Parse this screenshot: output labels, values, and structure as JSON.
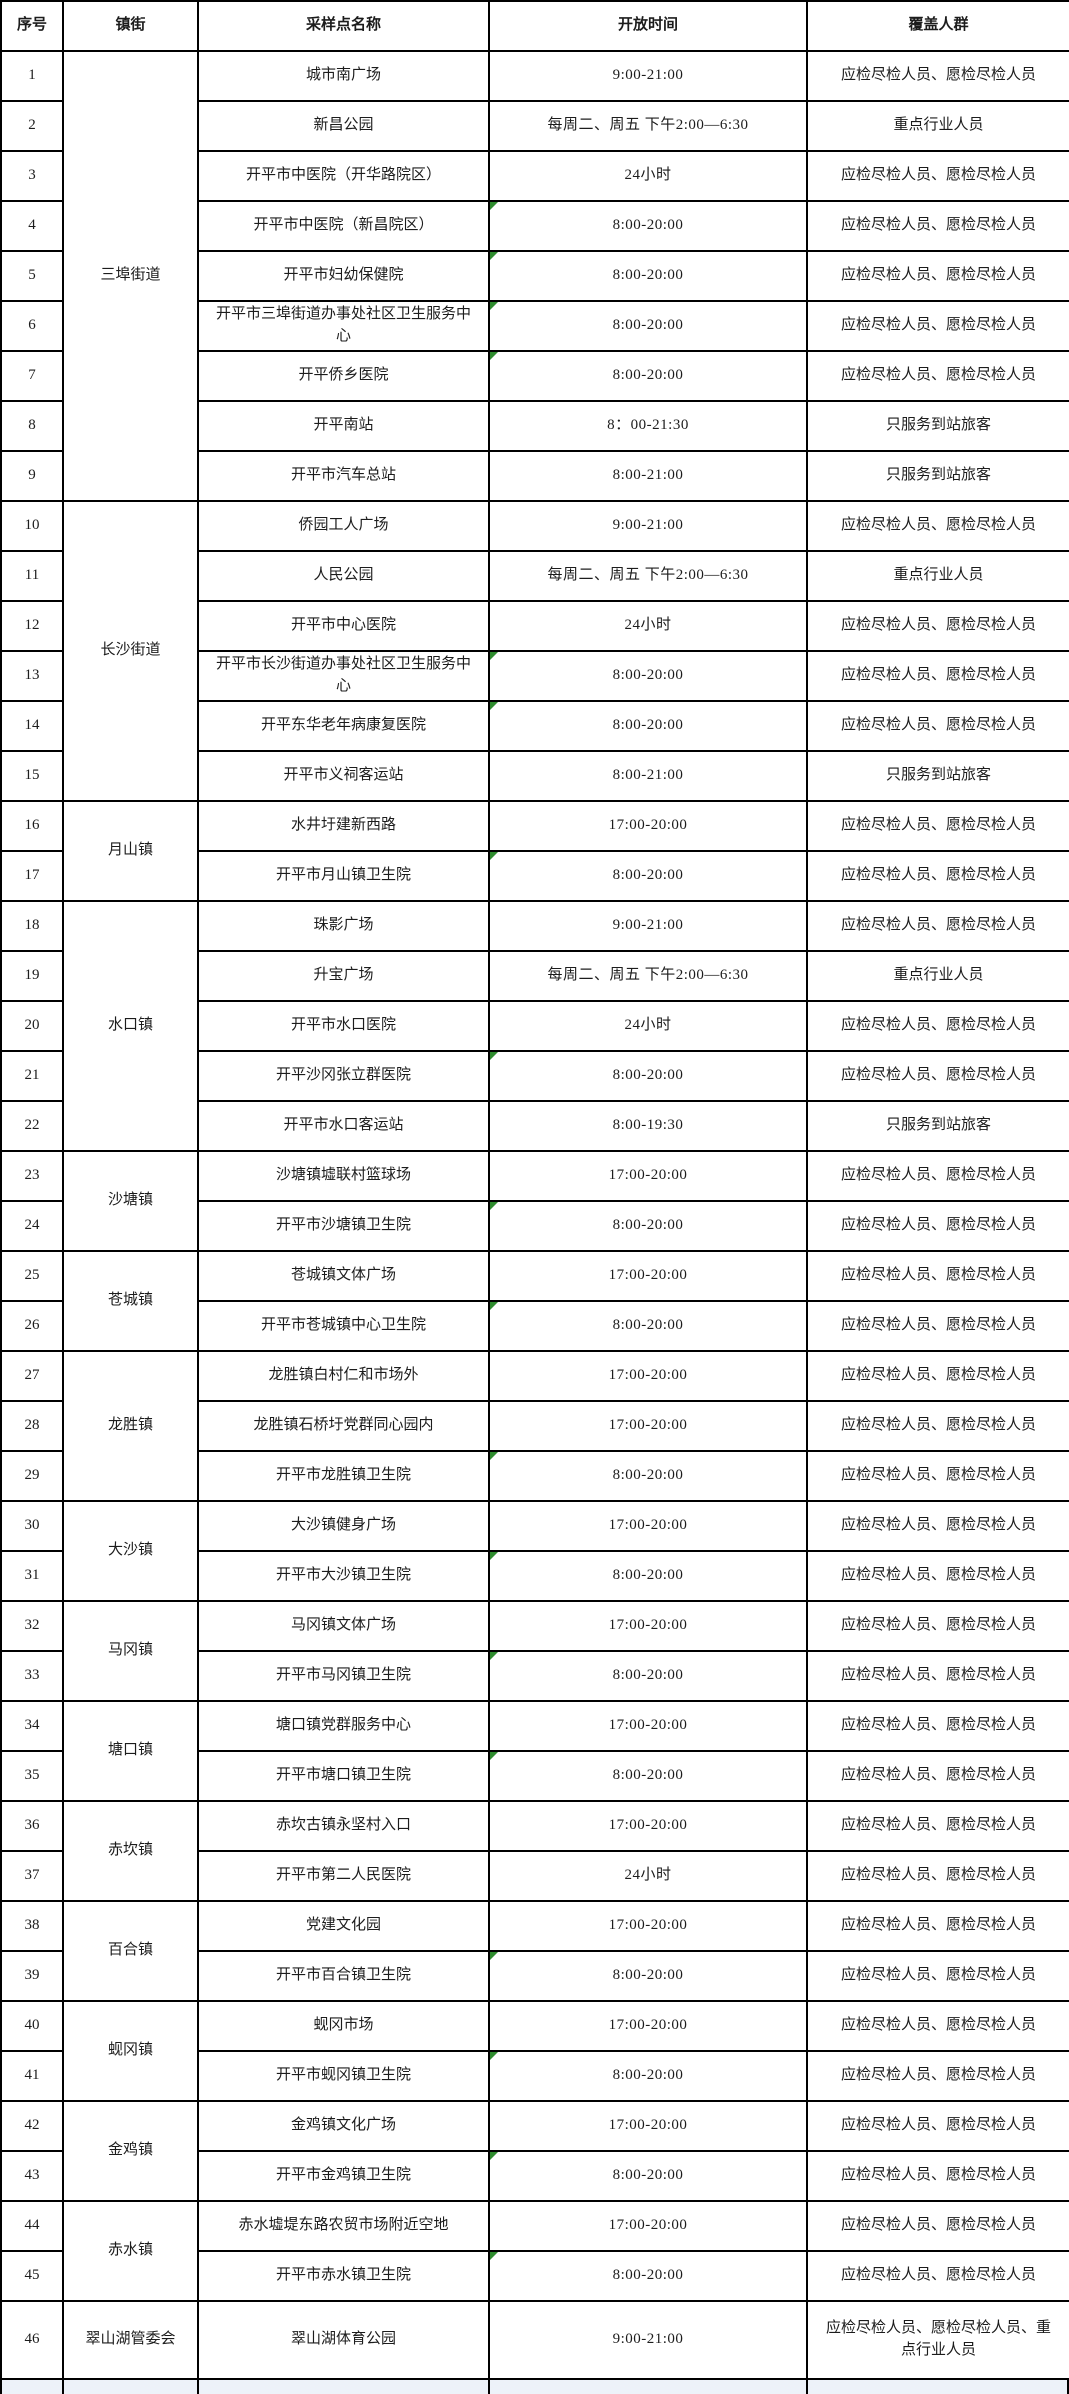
{
  "colors": {
    "red": "#e53325",
    "green_marker": "#2e8b2e",
    "bottom_strip_bg": "#edf2f9"
  },
  "table": {
    "headers": [
      "序号",
      "镇街",
      "采样点名称",
      "开放时间",
      "覆盖人群"
    ],
    "groups": [
      {
        "town": "三埠街道",
        "rows": [
          {
            "no": "1",
            "site": "城市南广场",
            "time": "9:00-21:00",
            "people": "应检尽检人员、愿检尽检人员",
            "red": true,
            "marker": false
          },
          {
            "no": "2",
            "site": "新昌公园",
            "time": "每周二、周五 下午2:00—6:30",
            "people": "重点行业人员",
            "red": true,
            "marker": false
          },
          {
            "no": "3",
            "site": "开平市中医院（开华路院区）",
            "time": "24小时",
            "people": "应检尽检人员、愿检尽检人员",
            "red": false,
            "marker": false
          },
          {
            "no": "4",
            "site": "开平市中医院（新昌院区）",
            "time": "8:00-20:00",
            "people": "应检尽检人员、愿检尽检人员",
            "red": false,
            "marker": true
          },
          {
            "no": "5",
            "site": "开平市妇幼保健院",
            "time": "8:00-20:00",
            "people": "应检尽检人员、愿检尽检人员",
            "red": false,
            "marker": true
          },
          {
            "no": "6",
            "site": "开平市三埠街道办事处社区卫生服务中心",
            "time": "8:00-20:00",
            "people": "应检尽检人员、愿检尽检人员",
            "red": false,
            "marker": true
          },
          {
            "no": "7",
            "site": "开平侨乡医院",
            "time": "8:00-20:00",
            "people": "应检尽检人员、愿检尽检人员",
            "red": false,
            "marker": true
          },
          {
            "no": "8",
            "site": "开平南站",
            "time": "8：00-21:30",
            "people": "只服务到站旅客",
            "red": false,
            "marker": false
          },
          {
            "no": "9",
            "site": "开平市汽车总站",
            "time": "8:00-21:00",
            "people": "只服务到站旅客",
            "red": false,
            "marker": false
          }
        ]
      },
      {
        "town": "长沙街道",
        "rows": [
          {
            "no": "10",
            "site": "侨园工人广场",
            "time": "9:00-21:00",
            "people": "应检尽检人员、愿检尽检人员",
            "red": true,
            "marker": false
          },
          {
            "no": "11",
            "site": "人民公园",
            "time": "每周二、周五 下午2:00—6:30",
            "people": "重点行业人员",
            "red": true,
            "marker": false
          },
          {
            "no": "12",
            "site": "开平市中心医院",
            "time": "24小时",
            "people": "应检尽检人员、愿检尽检人员",
            "red": false,
            "marker": false
          },
          {
            "no": "13",
            "site": "开平市长沙街道办事处社区卫生服务中心",
            "time": "8:00-20:00",
            "people": "应检尽检人员、愿检尽检人员",
            "red": false,
            "marker": true
          },
          {
            "no": "14",
            "site": "开平东华老年病康复医院",
            "time": "8:00-20:00",
            "people": "应检尽检人员、愿检尽检人员",
            "red": false,
            "marker": true
          },
          {
            "no": "15",
            "site": "开平市义祠客运站",
            "time": "8:00-21:00",
            "people": "只服务到站旅客",
            "red": false,
            "marker": false
          }
        ]
      },
      {
        "town": "月山镇",
        "rows": [
          {
            "no": "16",
            "site": "水井圩建新西路",
            "time": "17:00-20:00",
            "people": "应检尽检人员、愿检尽检人员",
            "red": true,
            "marker": false
          },
          {
            "no": "17",
            "site": "开平市月山镇卫生院",
            "time": "8:00-20:00",
            "people": "应检尽检人员、愿检尽检人员",
            "red": false,
            "marker": true
          }
        ]
      },
      {
        "town": "水口镇",
        "rows": [
          {
            "no": "18",
            "site": "珠影广场",
            "time": "9:00-21:00",
            "people": "应检尽检人员、愿检尽检人员",
            "red": true,
            "marker": false
          },
          {
            "no": "19",
            "site": "升宝广场",
            "time": "每周二、周五 下午2:00—6:30",
            "people": "重点行业人员",
            "red": true,
            "marker": false
          },
          {
            "no": "20",
            "site": "开平市水口医院",
            "time": "24小时",
            "people": "应检尽检人员、愿检尽检人员",
            "red": false,
            "marker": false
          },
          {
            "no": "21",
            "site": "开平沙冈张立群医院",
            "time": "8:00-20:00",
            "people": "应检尽检人员、愿检尽检人员",
            "red": false,
            "marker": true
          },
          {
            "no": "22",
            "site": "开平市水口客运站",
            "time": "8:00-19:30",
            "people": "只服务到站旅客",
            "red": false,
            "marker": false
          }
        ]
      },
      {
        "town": "沙塘镇",
        "rows": [
          {
            "no": "23",
            "site": "沙塘镇墟联村篮球场",
            "time": "17:00-20:00",
            "people": "应检尽检人员、愿检尽检人员",
            "red": true,
            "marker": false
          },
          {
            "no": "24",
            "site": "开平市沙塘镇卫生院",
            "time": "8:00-20:00",
            "people": "应检尽检人员、愿检尽检人员",
            "red": false,
            "marker": true
          }
        ]
      },
      {
        "town": "苍城镇",
        "rows": [
          {
            "no": "25",
            "site": "苍城镇文体广场",
            "time": "17:00-20:00",
            "people": "应检尽检人员、愿检尽检人员",
            "red": true,
            "marker": false
          },
          {
            "no": "26",
            "site": "开平市苍城镇中心卫生院",
            "time": "8:00-20:00",
            "people": "应检尽检人员、愿检尽检人员",
            "red": false,
            "marker": true
          }
        ]
      },
      {
        "town": "龙胜镇",
        "rows": [
          {
            "no": "27",
            "site": "龙胜镇白村仁和市场外",
            "time": "17:00-20:00",
            "people": "应检尽检人员、愿检尽检人员",
            "red": true,
            "marker": false
          },
          {
            "no": "28",
            "site": "龙胜镇石桥圩党群同心园内",
            "time": "17:00-20:00",
            "people": "应检尽检人员、愿检尽检人员",
            "red": true,
            "marker": false
          },
          {
            "no": "29",
            "site": "开平市龙胜镇卫生院",
            "time": "8:00-20:00",
            "people": "应检尽检人员、愿检尽检人员",
            "red": false,
            "marker": true
          }
        ]
      },
      {
        "town": "大沙镇",
        "rows": [
          {
            "no": "30",
            "site": "大沙镇健身广场",
            "time": "17:00-20:00",
            "people": "应检尽检人员、愿检尽检人员",
            "red": true,
            "marker": false
          },
          {
            "no": "31",
            "site": "开平市大沙镇卫生院",
            "time": "8:00-20:00",
            "people": "应检尽检人员、愿检尽检人员",
            "red": false,
            "marker": true
          }
        ]
      },
      {
        "town": "马冈镇",
        "rows": [
          {
            "no": "32",
            "site": "马冈镇文体广场",
            "time": "17:00-20:00",
            "people": "应检尽检人员、愿检尽检人员",
            "red": true,
            "marker": false
          },
          {
            "no": "33",
            "site": "开平市马冈镇卫生院",
            "time": "8:00-20:00",
            "people": "应检尽检人员、愿检尽检人员",
            "red": false,
            "marker": true
          }
        ]
      },
      {
        "town": "塘口镇",
        "rows": [
          {
            "no": "34",
            "site": "塘口镇党群服务中心",
            "time": "17:00-20:00",
            "people": "应检尽检人员、愿检尽检人员",
            "red": true,
            "marker": false
          },
          {
            "no": "35",
            "site": "开平市塘口镇卫生院",
            "time": "8:00-20:00",
            "people": "应检尽检人员、愿检尽检人员",
            "red": false,
            "marker": true
          }
        ]
      },
      {
        "town": "赤坎镇",
        "rows": [
          {
            "no": "36",
            "site": "赤坎古镇永坚村入口",
            "time": "17:00-20:00",
            "people": "应检尽检人员、愿检尽检人员",
            "red": true,
            "marker": false
          },
          {
            "no": "37",
            "site": "开平市第二人民医院",
            "time": "24小时",
            "people": "应检尽检人员、愿检尽检人员",
            "red": false,
            "marker": false
          }
        ]
      },
      {
        "town": "百合镇",
        "rows": [
          {
            "no": "38",
            "site": "党建文化园",
            "time": "17:00-20:00",
            "people": "应检尽检人员、愿检尽检人员",
            "red": true,
            "marker": false
          },
          {
            "no": "39",
            "site": "开平市百合镇卫生院",
            "time": "8:00-20:00",
            "people": "应检尽检人员、愿检尽检人员",
            "red": false,
            "marker": true
          }
        ]
      },
      {
        "town": "蚬冈镇",
        "rows": [
          {
            "no": "40",
            "site": "蚬冈市场",
            "time": "17:00-20:00",
            "people": "应检尽检人员、愿检尽检人员",
            "red": true,
            "marker": false
          },
          {
            "no": "41",
            "site": "开平市蚬冈镇卫生院",
            "time": "8:00-20:00",
            "people": "应检尽检人员、愿检尽检人员",
            "red": false,
            "marker": true
          }
        ]
      },
      {
        "town": "金鸡镇",
        "rows": [
          {
            "no": "42",
            "site": "金鸡镇文化广场",
            "time": "17:00-20:00",
            "people": "应检尽检人员、愿检尽检人员",
            "red": true,
            "marker": false
          },
          {
            "no": "43",
            "site": "开平市金鸡镇卫生院",
            "time": "8:00-20:00",
            "people": "应检尽检人员、愿检尽检人员",
            "red": false,
            "marker": true
          }
        ]
      },
      {
        "town": "赤水镇",
        "rows": [
          {
            "no": "44",
            "site": "赤水墟堤东路农贸市场附近空地",
            "time": "17:00-20:00",
            "people": "应检尽检人员、愿检尽检人员",
            "red": true,
            "marker": false
          },
          {
            "no": "45",
            "site": "开平市赤水镇卫生院",
            "time": "8:00-20:00",
            "people": "应检尽检人员、愿检尽检人员",
            "red": false,
            "marker": true
          }
        ]
      },
      {
        "town": "翠山湖管委会",
        "rows": [
          {
            "no": "46",
            "site": "翠山湖体育公园",
            "time": "9:00-21:00",
            "people": "应检尽检人员、愿检尽检人员、重点行业人员",
            "red": true,
            "marker": false,
            "tall": true
          }
        ]
      }
    ]
  }
}
